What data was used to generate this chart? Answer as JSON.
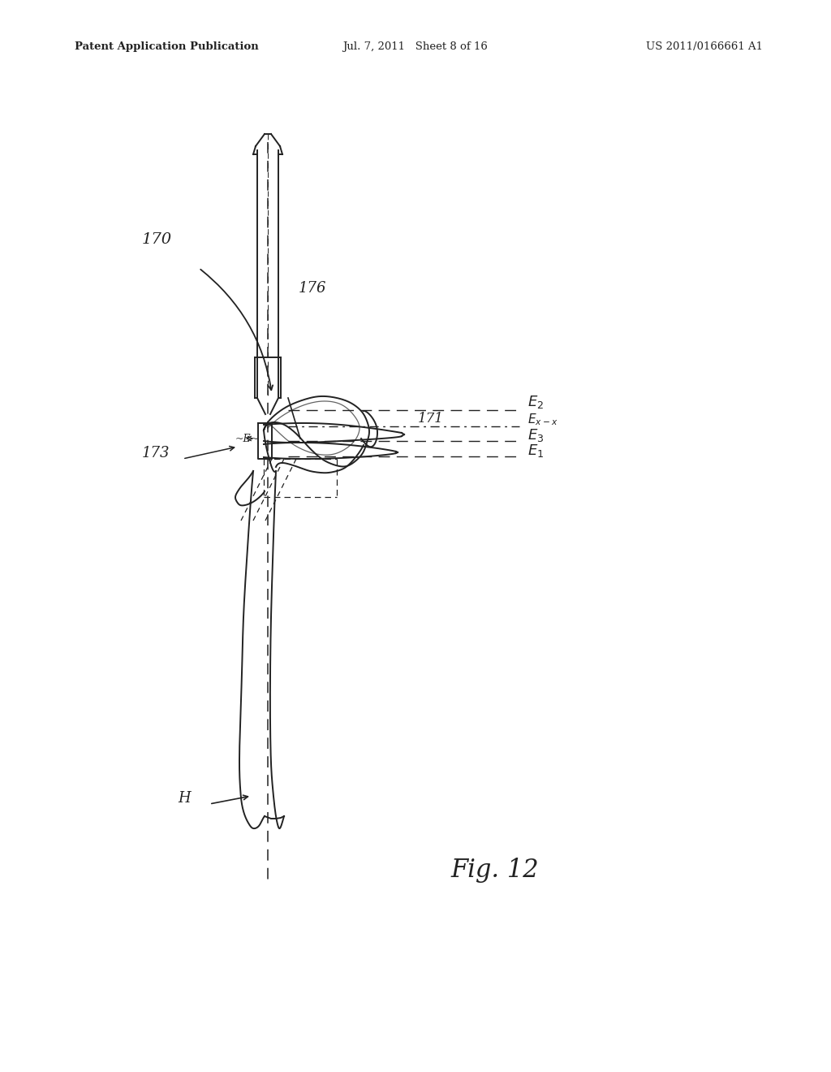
{
  "background_color": "#ffffff",
  "header_left": "Patent Application Publication",
  "header_center": "Jul. 7, 2011   Sheet 8 of 16",
  "header_right": "US 2011/0166661 A1",
  "figure_label": "Fig. 12"
}
